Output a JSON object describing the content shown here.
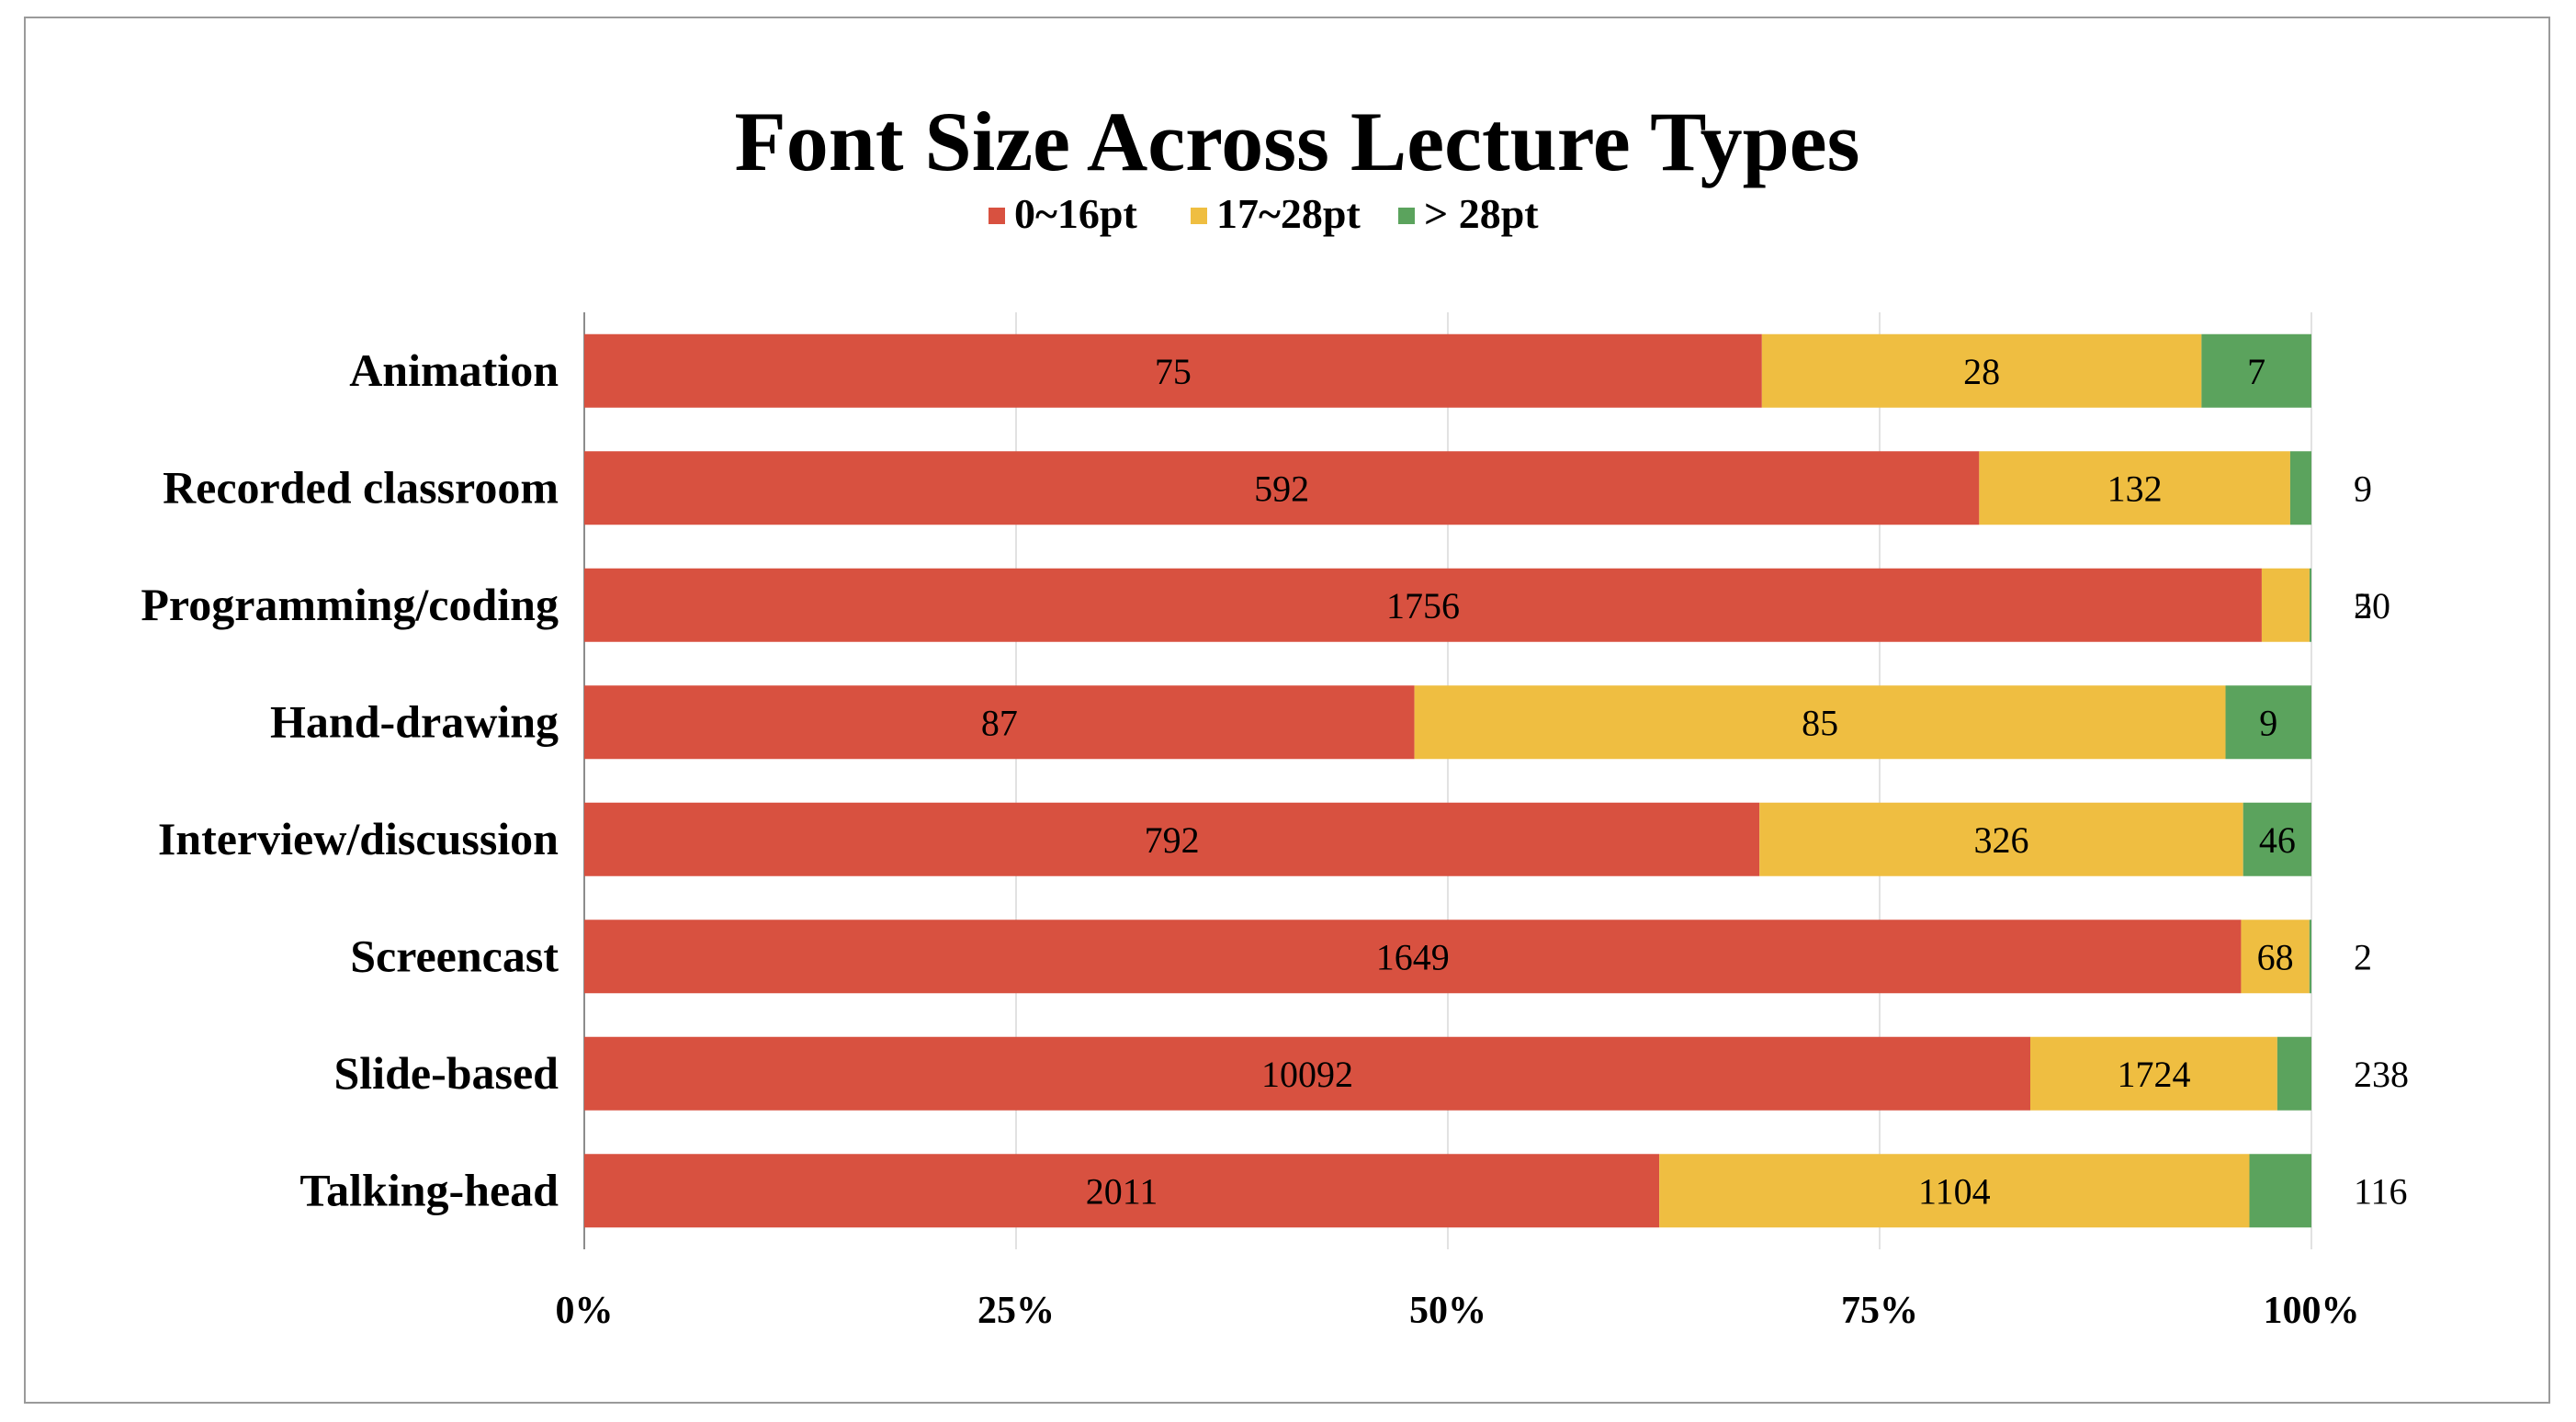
{
  "chart_data": {
    "type": "bar",
    "orientation": "horizontal",
    "stacking": "percent",
    "title": "Font Size Across Lecture Types",
    "categories": [
      "Animation",
      "Recorded classroom",
      "Programming/coding",
      "Hand-drawing",
      "Interview/discussion",
      "Screencast",
      "Slide-based",
      "Talking-head"
    ],
    "series": [
      {
        "name": "0~16pt",
        "color": "#d85140",
        "values": [
          75,
          592,
          1756,
          87,
          792,
          1649,
          10092,
          2011
        ]
      },
      {
        "name": "17~28pt",
        "color": "#efbe41",
        "values": [
          28,
          132,
          50,
          85,
          326,
          68,
          1724,
          1104
        ]
      },
      {
        "name": "> 28pt",
        "color": "#5ba35d",
        "values": [
          7,
          9,
          2,
          9,
          46,
          2,
          238,
          116
        ]
      }
    ],
    "x_ticks": [
      "0%",
      "25%",
      "50%",
      "75%",
      "100%"
    ],
    "xlim": [
      0,
      100
    ],
    "grid": true,
    "legend_position": "top"
  }
}
